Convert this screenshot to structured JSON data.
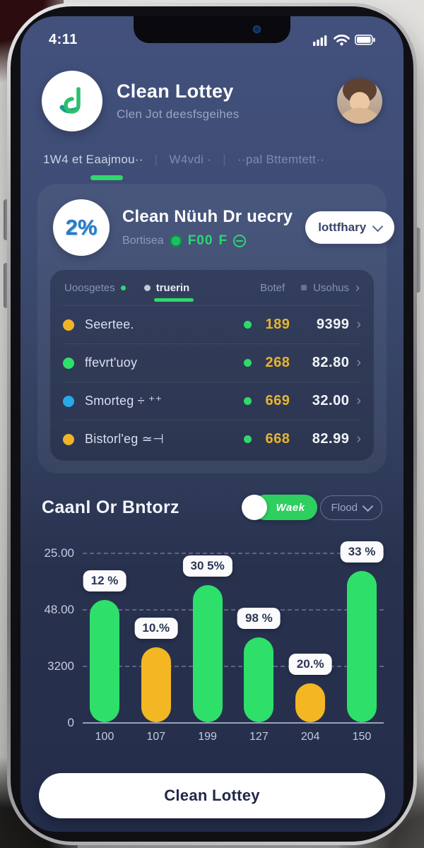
{
  "status_bar": {
    "time": "4:11"
  },
  "header": {
    "app_title": "Clean Lottey",
    "app_subtitle": "Clen Jot deesfsgeihes"
  },
  "nav_tabs": {
    "separator": "|",
    "items": [
      {
        "label": "1W4 et Eaajmou··",
        "active": true
      },
      {
        "label": "W4vdi ·",
        "active": false
      },
      {
        "label": "··pal Bttemtett··",
        "active": false
      }
    ]
  },
  "summary_card": {
    "badge_text": "2%",
    "title": "Clean Nüuh Dr uecry",
    "subtitle": "Bortisea",
    "coin_value": "F00",
    "coin_value_2": "F",
    "dropdown_label": "lottfhary"
  },
  "list_card": {
    "tab_left": "Uoosgetes",
    "tab_active": "truerin",
    "header_right_1": "Botef",
    "header_right_2": "Usohus",
    "chevron_right": "›",
    "rows": [
      {
        "dot_color": "#f0b429",
        "name": "Seertee.",
        "count": "189",
        "value": "9399"
      },
      {
        "dot_color": "#2ee06a",
        "name": "ffevrt'uoy",
        "count": "268",
        "value": "82.80"
      },
      {
        "dot_color": "#2aa9e8",
        "name": "Smorteg ÷ ⁺⁺",
        "count": "669",
        "value": "32.00"
      },
      {
        "dot_color": "#f0b429",
        "name": "Bistorl'eg ≃⊣",
        "count": "668",
        "value": "82.99"
      }
    ]
  },
  "chart_section": {
    "title": "Caanl Or Bntorz",
    "toggle_label": "Waek",
    "dropdown_label": "Flood"
  },
  "chart_data": {
    "type": "bar",
    "title": "Caanl Or Bntorz",
    "categories": [
      "100",
      "107",
      "199",
      "127",
      "204",
      "150"
    ],
    "bar_labels": [
      "12 %",
      "10.%",
      "30 5%",
      "98 %",
      "20.%",
      "33 %"
    ],
    "height_pct": [
      72,
      44,
      81,
      50,
      23,
      89
    ],
    "bar_colors": [
      "#2ee06a",
      "#f2b722",
      "#2ee06a",
      "#2ee06a",
      "#f2b722",
      "#2ee06a"
    ],
    "y_tick_labels": [
      "25.00",
      "48.00",
      "3200",
      "0"
    ],
    "ylim": [
      0,
      25
    ],
    "grid": "dashed horizontal",
    "legend": "none"
  },
  "footer": {
    "button_label": "Clean Lottey"
  },
  "colors": {
    "accent_green": "#2ee06a",
    "accent_yellow": "#f2b722",
    "accent_blue": "#2aa9e8",
    "count_yellow": "#e9b42e",
    "screen_top": "#3e4c74",
    "screen_bottom": "#242e4b"
  }
}
